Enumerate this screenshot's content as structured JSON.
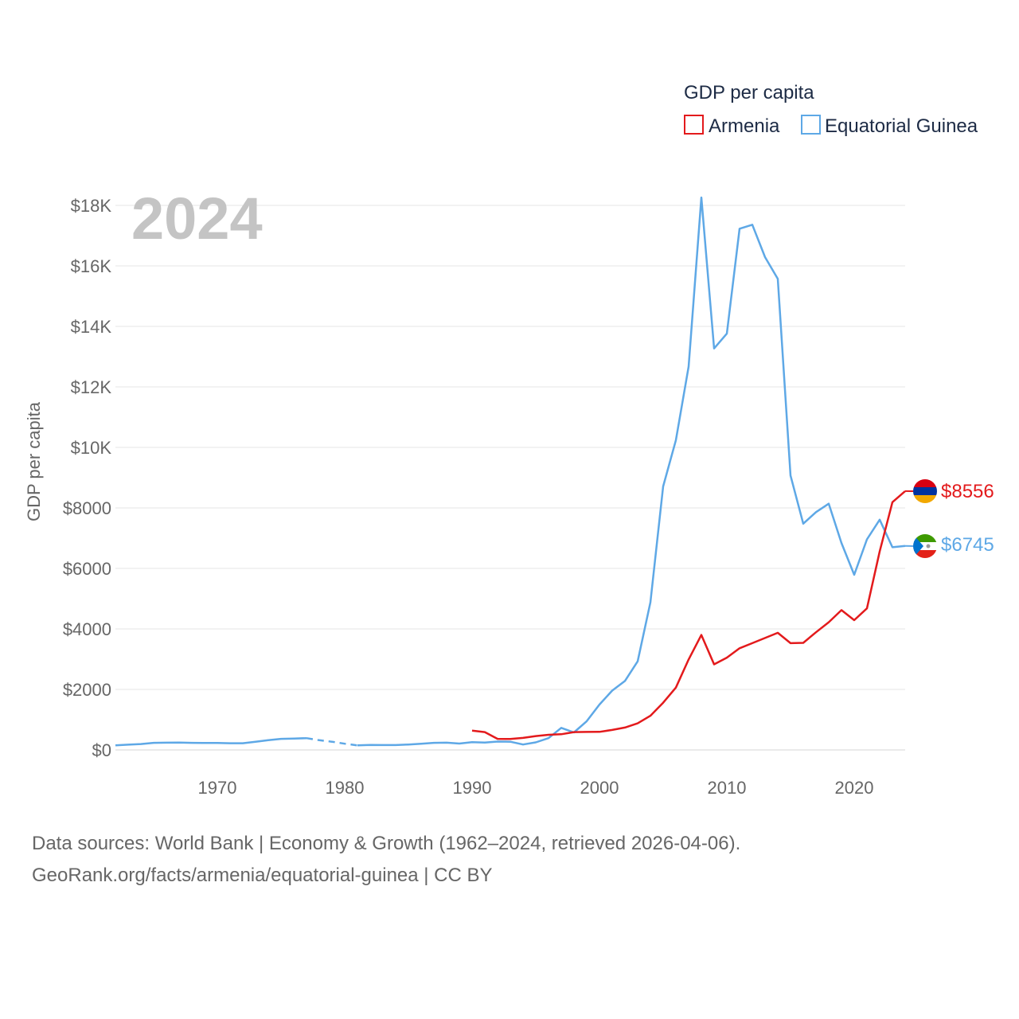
{
  "chart_data": {
    "type": "line",
    "title": "GDP per capita",
    "ylabel": "GDP per capita",
    "xlabel": "",
    "year": "2024",
    "xlim": [
      1962,
      2024
    ],
    "ylim": [
      0,
      18000
    ],
    "x_ticks": [
      {
        "value": 1970,
        "label": "1970"
      },
      {
        "value": 1980,
        "label": "1980"
      },
      {
        "value": 1990,
        "label": "1990"
      },
      {
        "value": 2000,
        "label": "2000"
      },
      {
        "value": 2010,
        "label": "2010"
      },
      {
        "value": 2020,
        "label": "2020"
      }
    ],
    "y_ticks": [
      {
        "value": 0,
        "label": "$0"
      },
      {
        "value": 2000,
        "label": "$2000"
      },
      {
        "value": 4000,
        "label": "$4000"
      },
      {
        "value": 6000,
        "label": "$6000"
      },
      {
        "value": 8000,
        "label": "$8000"
      },
      {
        "value": 10000,
        "label": "$10K"
      },
      {
        "value": 12000,
        "label": "$12K"
      },
      {
        "value": 14000,
        "label": "$14K"
      },
      {
        "value": 16000,
        "label": "$16K"
      },
      {
        "value": 18000,
        "label": "$18K"
      }
    ],
    "series": [
      {
        "name": "Armenia",
        "color": "#e31a1c",
        "end_label": "$8556",
        "flag": "armenia-flag",
        "points": [
          [
            1990,
            637
          ],
          [
            1991,
            590
          ],
          [
            1992,
            366
          ],
          [
            1993,
            360
          ],
          [
            1994,
            398
          ],
          [
            1995,
            457
          ],
          [
            1996,
            500
          ],
          [
            1997,
            519
          ],
          [
            1998,
            590
          ],
          [
            1999,
            594
          ],
          [
            2000,
            598
          ],
          [
            2001,
            660
          ],
          [
            2002,
            740
          ],
          [
            2003,
            880
          ],
          [
            2004,
            1130
          ],
          [
            2005,
            1560
          ],
          [
            2006,
            2060
          ],
          [
            2007,
            2990
          ],
          [
            2008,
            3800
          ],
          [
            2009,
            2830
          ],
          [
            2010,
            3050
          ],
          [
            2011,
            3360
          ],
          [
            2012,
            3530
          ],
          [
            2013,
            3700
          ],
          [
            2014,
            3870
          ],
          [
            2015,
            3530
          ],
          [
            2016,
            3540
          ],
          [
            2017,
            3890
          ],
          [
            2018,
            4220
          ],
          [
            2019,
            4620
          ],
          [
            2020,
            4290
          ],
          [
            2021,
            4680
          ],
          [
            2022,
            6560
          ],
          [
            2023,
            8190
          ],
          [
            2024,
            8556
          ]
        ]
      },
      {
        "name": "Equatorial Guinea",
        "color": "#5ea8e6",
        "end_label": "$6745",
        "flag": "equatorial-guinea-flag",
        "points": [
          [
            1962,
            150
          ],
          [
            1963,
            175
          ],
          [
            1964,
            195
          ],
          [
            1965,
            235
          ],
          [
            1966,
            240
          ],
          [
            1967,
            245
          ],
          [
            1968,
            235
          ],
          [
            1969,
            230
          ],
          [
            1970,
            228
          ],
          [
            1971,
            222
          ],
          [
            1972,
            222
          ],
          [
            1973,
            270
          ],
          [
            1974,
            320
          ],
          [
            1975,
            365
          ],
          [
            1976,
            375
          ],
          [
            1977,
            390
          ]
        ],
        "gap_points": [
          [
            1977,
            390
          ],
          [
            1978,
            320
          ],
          [
            1979,
            270
          ],
          [
            1980,
            205
          ],
          [
            1981,
            150
          ]
        ],
        "points2": [
          [
            1981,
            150
          ],
          [
            1982,
            165
          ],
          [
            1983,
            160
          ],
          [
            1984,
            160
          ],
          [
            1985,
            180
          ],
          [
            1986,
            205
          ],
          [
            1987,
            235
          ],
          [
            1988,
            240
          ],
          [
            1989,
            210
          ],
          [
            1990,
            255
          ],
          [
            1991,
            245
          ],
          [
            1992,
            275
          ],
          [
            1993,
            270
          ],
          [
            1994,
            180
          ],
          [
            1995,
            250
          ],
          [
            1996,
            390
          ],
          [
            1997,
            730
          ],
          [
            1998,
            580
          ],
          [
            1999,
            950
          ],
          [
            2000,
            1500
          ],
          [
            2001,
            1960
          ],
          [
            2002,
            2280
          ],
          [
            2003,
            2930
          ],
          [
            2004,
            4880
          ],
          [
            2005,
            8710
          ],
          [
            2006,
            10240
          ],
          [
            2007,
            12670
          ],
          [
            2008,
            18260
          ],
          [
            2009,
            13270
          ],
          [
            2010,
            13760
          ],
          [
            2011,
            17230
          ],
          [
            2012,
            17360
          ],
          [
            2013,
            16290
          ],
          [
            2014,
            15570
          ],
          [
            2015,
            9070
          ],
          [
            2016,
            7480
          ],
          [
            2017,
            7860
          ],
          [
            2018,
            8140
          ],
          [
            2019,
            6840
          ],
          [
            2020,
            5790
          ],
          [
            2021,
            6960
          ],
          [
            2022,
            7610
          ],
          [
            2023,
            6700
          ],
          [
            2024,
            6745
          ]
        ]
      }
    ],
    "legend": {
      "title": "GDP per capita",
      "position": "top-right",
      "entries": [
        {
          "label": "Armenia",
          "color": "#e31a1c"
        },
        {
          "label": "Equatorial Guinea",
          "color": "#5ea8e6"
        }
      ]
    }
  },
  "footer": {
    "line1": "Data sources: World Bank | Economy & Growth (1962–2024, retrieved 2026-04-06).",
    "line2": "GeoRank.org/facts/armenia/equatorial-guinea | CC BY"
  }
}
